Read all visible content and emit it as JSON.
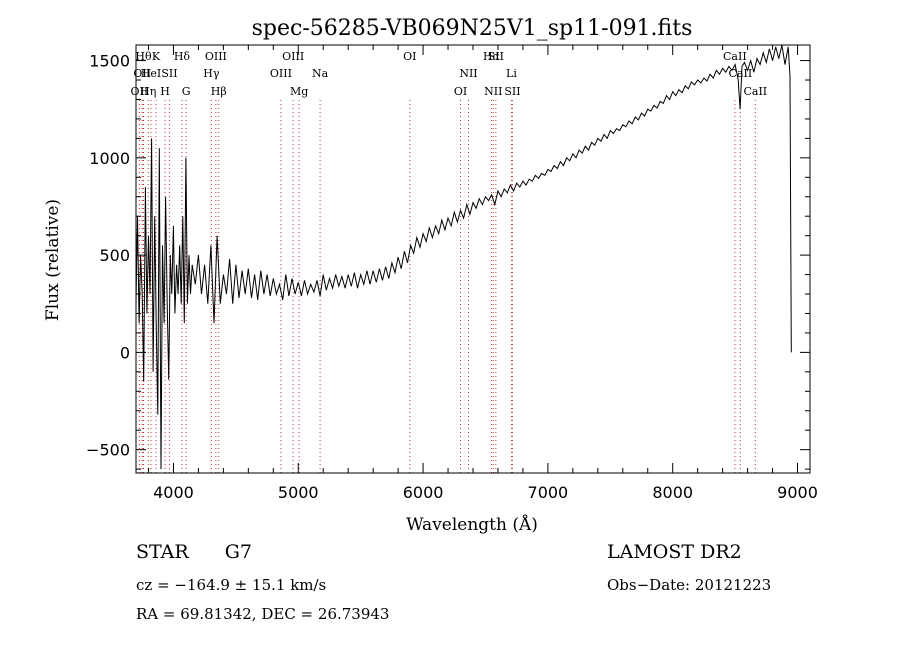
{
  "chart_data": {
    "type": "line",
    "title": "spec-56285-VB069N25V1_sp11-091.fits",
    "xlabel": "Wavelength (Å)",
    "ylabel": "Flux (relative)",
    "xlim": [
      3700,
      9100
    ],
    "ylim": [
      -620,
      1580
    ],
    "xticks": [
      4000,
      5000,
      6000,
      7000,
      8000,
      9000
    ],
    "yticks": [
      -500,
      0,
      500,
      1000,
      1500
    ],
    "series": [
      {
        "points": [
          [
            3700,
            250
          ],
          [
            3712,
            700
          ],
          [
            3725,
            150
          ],
          [
            3737,
            500
          ],
          [
            3750,
            300
          ],
          [
            3762,
            -150
          ],
          [
            3775,
            850
          ],
          [
            3787,
            200
          ],
          [
            3800,
            600
          ],
          [
            3812,
            300
          ],
          [
            3825,
            1100
          ],
          [
            3837,
            -100
          ],
          [
            3850,
            700
          ],
          [
            3862,
            150
          ],
          [
            3875,
            -320
          ],
          [
            3887,
            1050
          ],
          [
            3900,
            -600
          ],
          [
            3912,
            550
          ],
          [
            3925,
            150
          ],
          [
            3937,
            800
          ],
          [
            3950,
            250
          ],
          [
            3962,
            -140
          ],
          [
            3975,
            500
          ],
          [
            3987,
            300
          ],
          [
            4000,
            650
          ],
          [
            4012,
            200
          ],
          [
            4025,
            450
          ],
          [
            4037,
            300
          ],
          [
            4050,
            550
          ],
          [
            4062,
            250
          ],
          [
            4075,
            700
          ],
          [
            4087,
            150
          ],
          [
            4100,
            1000
          ],
          [
            4112,
            250
          ],
          [
            4125,
            500
          ],
          [
            4137,
            300
          ],
          [
            4150,
            450
          ],
          [
            4175,
            350
          ],
          [
            4200,
            500
          ],
          [
            4225,
            300
          ],
          [
            4250,
            450
          ],
          [
            4275,
            250
          ],
          [
            4300,
            550
          ],
          [
            4325,
            150
          ],
          [
            4350,
            600
          ],
          [
            4375,
            250
          ],
          [
            4400,
            400
          ],
          [
            4425,
            300
          ],
          [
            4450,
            480
          ],
          [
            4475,
            250
          ],
          [
            4500,
            450
          ],
          [
            4525,
            280
          ],
          [
            4550,
            420
          ],
          [
            4575,
            300
          ],
          [
            4600,
            430
          ],
          [
            4625,
            280
          ],
          [
            4650,
            400
          ],
          [
            4675,
            270
          ],
          [
            4700,
            420
          ],
          [
            4725,
            300
          ],
          [
            4750,
            400
          ],
          [
            4775,
            290
          ],
          [
            4800,
            380
          ],
          [
            4825,
            300
          ],
          [
            4850,
            350
          ],
          [
            4875,
            270
          ],
          [
            4900,
            400
          ],
          [
            4925,
            290
          ],
          [
            4950,
            380
          ],
          [
            4975,
            300
          ],
          [
            5000,
            360
          ],
          [
            5025,
            290
          ],
          [
            5050,
            370
          ],
          [
            5075,
            300
          ],
          [
            5100,
            350
          ],
          [
            5125,
            310
          ],
          [
            5150,
            370
          ],
          [
            5175,
            290
          ],
          [
            5200,
            400
          ],
          [
            5225,
            320
          ],
          [
            5250,
            380
          ],
          [
            5275,
            330
          ],
          [
            5300,
            400
          ],
          [
            5325,
            340
          ],
          [
            5350,
            390
          ],
          [
            5375,
            330
          ],
          [
            5400,
            400
          ],
          [
            5425,
            340
          ],
          [
            5450,
            410
          ],
          [
            5475,
            330
          ],
          [
            5500,
            400
          ],
          [
            5525,
            350
          ],
          [
            5550,
            420
          ],
          [
            5575,
            350
          ],
          [
            5600,
            420
          ],
          [
            5625,
            360
          ],
          [
            5650,
            430
          ],
          [
            5675,
            370
          ],
          [
            5700,
            440
          ],
          [
            5725,
            380
          ],
          [
            5750,
            460
          ],
          [
            5775,
            410
          ],
          [
            5800,
            490
          ],
          [
            5825,
            430
          ],
          [
            5850,
            520
          ],
          [
            5875,
            460
          ],
          [
            5900,
            550
          ],
          [
            5925,
            510
          ],
          [
            5950,
            590
          ],
          [
            5975,
            540
          ],
          [
            6000,
            610
          ],
          [
            6025,
            570
          ],
          [
            6050,
            640
          ],
          [
            6075,
            590
          ],
          [
            6100,
            650
          ],
          [
            6125,
            610
          ],
          [
            6150,
            680
          ],
          [
            6175,
            630
          ],
          [
            6200,
            690
          ],
          [
            6225,
            650
          ],
          [
            6250,
            720
          ],
          [
            6275,
            670
          ],
          [
            6300,
            730
          ],
          [
            6325,
            690
          ],
          [
            6350,
            760
          ],
          [
            6375,
            710
          ],
          [
            6400,
            770
          ],
          [
            6425,
            740
          ],
          [
            6450,
            790
          ],
          [
            6475,
            760
          ],
          [
            6500,
            800
          ],
          [
            6525,
            780
          ],
          [
            6550,
            810
          ],
          [
            6575,
            760
          ],
          [
            6600,
            830
          ],
          [
            6625,
            800
          ],
          [
            6650,
            840
          ],
          [
            6675,
            820
          ],
          [
            6700,
            860
          ],
          [
            6725,
            830
          ],
          [
            6750,
            870
          ],
          [
            6775,
            850
          ],
          [
            6800,
            880
          ],
          [
            6825,
            860
          ],
          [
            6850,
            890
          ],
          [
            6875,
            880
          ],
          [
            6900,
            910
          ],
          [
            6925,
            895
          ],
          [
            6950,
            920
          ],
          [
            6975,
            910
          ],
          [
            7000,
            940
          ],
          [
            7025,
            930
          ],
          [
            7050,
            960
          ],
          [
            7075,
            945
          ],
          [
            7100,
            980
          ],
          [
            7125,
            960
          ],
          [
            7150,
            1000
          ],
          [
            7175,
            985
          ],
          [
            7200,
            1020
          ],
          [
            7225,
            1000
          ],
          [
            7250,
            1040
          ],
          [
            7275,
            1025
          ],
          [
            7300,
            1060
          ],
          [
            7325,
            1040
          ],
          [
            7350,
            1080
          ],
          [
            7375,
            1065
          ],
          [
            7400,
            1100
          ],
          [
            7425,
            1085
          ],
          [
            7450,
            1120
          ],
          [
            7475,
            1100
          ],
          [
            7500,
            1140
          ],
          [
            7525,
            1125
          ],
          [
            7550,
            1150
          ],
          [
            7575,
            1140
          ],
          [
            7600,
            1170
          ],
          [
            7625,
            1160
          ],
          [
            7650,
            1190
          ],
          [
            7675,
            1175
          ],
          [
            7700,
            1210
          ],
          [
            7725,
            1195
          ],
          [
            7750,
            1230
          ],
          [
            7775,
            1215
          ],
          [
            7800,
            1250
          ],
          [
            7825,
            1240
          ],
          [
            7850,
            1270
          ],
          [
            7875,
            1255
          ],
          [
            7900,
            1290
          ],
          [
            7925,
            1280
          ],
          [
            7950,
            1320
          ],
          [
            7975,
            1300
          ],
          [
            8000,
            1340
          ],
          [
            8025,
            1320
          ],
          [
            8050,
            1350
          ],
          [
            8075,
            1335
          ],
          [
            8100,
            1370
          ],
          [
            8125,
            1355
          ],
          [
            8150,
            1390
          ],
          [
            8175,
            1375
          ],
          [
            8200,
            1400
          ],
          [
            8225,
            1385
          ],
          [
            8250,
            1410
          ],
          [
            8275,
            1395
          ],
          [
            8300,
            1430
          ],
          [
            8325,
            1410
          ],
          [
            8350,
            1450
          ],
          [
            8375,
            1430
          ],
          [
            8400,
            1460
          ],
          [
            8425,
            1440
          ],
          [
            8450,
            1470
          ],
          [
            8475,
            1450
          ],
          [
            8500,
            1480
          ],
          [
            8525,
            1400
          ],
          [
            8540,
            1250
          ],
          [
            8555,
            1470
          ],
          [
            8575,
            1490
          ],
          [
            8600,
            1450
          ],
          [
            8625,
            1500
          ],
          [
            8650,
            1440
          ],
          [
            8675,
            1510
          ],
          [
            8700,
            1480
          ],
          [
            8725,
            1540
          ],
          [
            8750,
            1490
          ],
          [
            8775,
            1560
          ],
          [
            8800,
            1500
          ],
          [
            8825,
            1570
          ],
          [
            8850,
            1510
          ],
          [
            8875,
            1580
          ],
          [
            8900,
            1480
          ],
          [
            8925,
            1570
          ],
          [
            8940,
            1420
          ],
          [
            8950,
            0
          ]
        ]
      }
    ],
    "lines": [
      {
        "wave": 3727,
        "label": "OII",
        "row": 2
      },
      {
        "wave": 3750,
        "label": "OII",
        "row": 1
      },
      {
        "wave": 3760,
        "label": "Hθ",
        "row": 0
      },
      {
        "wave": 3798,
        "label": "Hη",
        "row": 2
      },
      {
        "wave": 3820,
        "label": "HeI",
        "row": 1
      },
      {
        "wave": 3860,
        "label": "K",
        "row": 0
      },
      {
        "wave": 3933,
        "label": "H",
        "row": 2
      },
      {
        "wave": 3968,
        "label": "SII",
        "row": 1
      },
      {
        "wave": 4068,
        "label": "Hδ",
        "row": 0
      },
      {
        "wave": 4102,
        "label": "G",
        "row": 2
      },
      {
        "wave": 4304,
        "label": "Hγ",
        "row": 1
      },
      {
        "wave": 4340,
        "label": "OIII",
        "row": 0
      },
      {
        "wave": 4363,
        "label": "Hβ",
        "row": 2
      },
      {
        "wave": 4861,
        "label": "OIII",
        "row": 1
      },
      {
        "wave": 4959,
        "label": "OIII",
        "row": 0
      },
      {
        "wave": 5007,
        "label": "Mg",
        "row": 2
      },
      {
        "wave": 5175,
        "label": "Na",
        "row": 1
      },
      {
        "wave": 5894,
        "label": "OI",
        "row": 0
      },
      {
        "wave": 6300,
        "label": "OI",
        "row": 2
      },
      {
        "wave": 6364,
        "label": "NII",
        "row": 1
      },
      {
        "wave": 6548,
        "label": "Hα",
        "row": 0
      },
      {
        "wave": 6563,
        "label": "NII",
        "row": 2
      },
      {
        "wave": 6583,
        "label": "SII",
        "row": 0
      },
      {
        "wave": 6708,
        "label": "Li",
        "row": 1
      },
      {
        "wave": 6716,
        "label": "SII",
        "row": 2
      },
      {
        "wave": 8498,
        "label": "CaII",
        "row": 0
      },
      {
        "wave": 8542,
        "label": "CaII",
        "row": 1
      },
      {
        "wave": 8662,
        "label": "CaII",
        "row": 2
      }
    ]
  },
  "info": {
    "class_label": "STAR",
    "subclass": "G7",
    "survey": "LAMOST DR2",
    "redshift": "cz = −164.9 ± 15.1 km/s",
    "obs_date": "Obs−Date: 20121223",
    "coords": "RA =  69.81342, DEC =  26.73943"
  },
  "colors": {
    "line_marker": "#c0392b",
    "spectrum": "#000000"
  }
}
